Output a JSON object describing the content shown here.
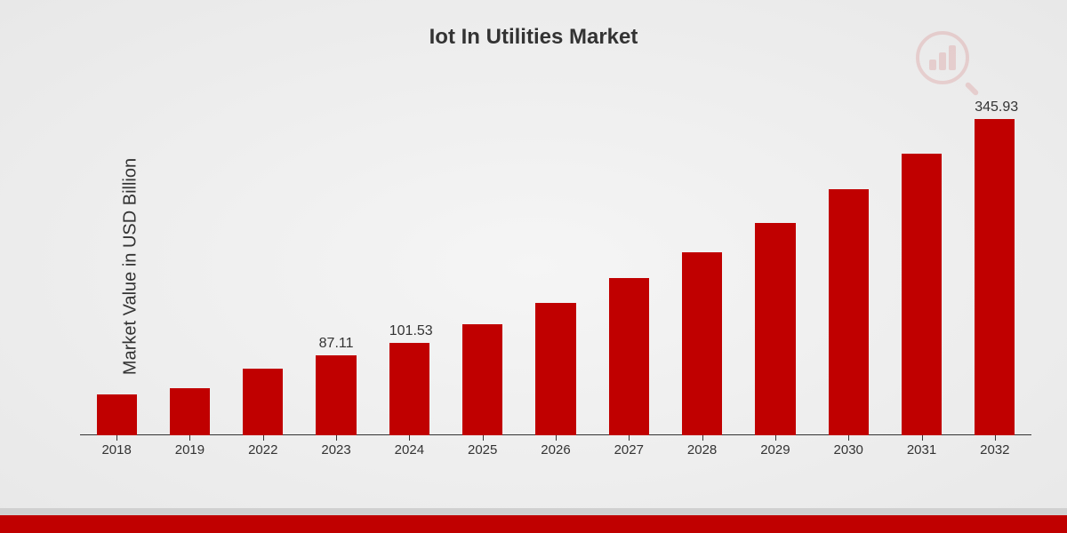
{
  "chart": {
    "type": "bar",
    "title": "Iot In Utilities Market",
    "ylabel": "Market Value in USD Billion",
    "title_fontsize": 24,
    "ylabel_fontsize": 20,
    "xlabel_fontsize": 15,
    "bar_label_fontsize": 16,
    "bar_color": "#c00000",
    "background_gradient_center": "#f5f5f5",
    "background_gradient_edge": "#e8e8e8",
    "axis_color": "#333333",
    "ylim": [
      0,
      360
    ],
    "bar_width_ratio": 0.55,
    "categories": [
      "2018",
      "2019",
      "2022",
      "2023",
      "2024",
      "2025",
      "2026",
      "2027",
      "2028",
      "2029",
      "2030",
      "2031",
      "2032"
    ],
    "values": [
      45,
      52,
      73,
      87.11,
      101.53,
      122,
      145,
      172,
      200,
      233,
      270,
      308,
      345.93
    ],
    "value_labels": [
      "",
      "",
      "",
      "87.11",
      "101.53",
      "",
      "",
      "",
      "",
      "",
      "",
      "",
      "345.93"
    ],
    "bottom_stripe_color": "#c00000",
    "bottom_stripe_gray": "#d0d0d0"
  }
}
